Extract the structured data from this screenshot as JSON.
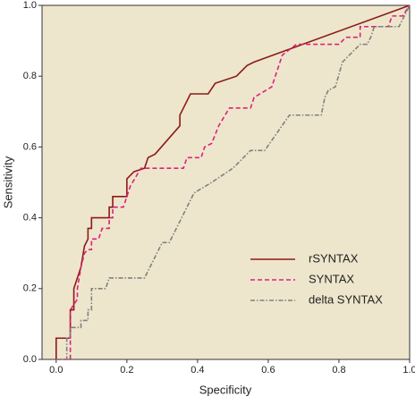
{
  "chart_data": {
    "type": "line",
    "x_label": "Specificity",
    "y_label": "Sensitivity",
    "xlim": [
      -0.04,
      1.0
    ],
    "ylim": [
      0,
      1
    ],
    "xticks": [
      {
        "value": 0,
        "label": "0.0"
      },
      {
        "value": 0.2,
        "label": "0.2"
      },
      {
        "value": 0.4,
        "label": "0.4"
      },
      {
        "value": 0.6,
        "label": "0.6"
      },
      {
        "value": 0.8,
        "label": "0.8"
      },
      {
        "value": 1,
        "label": "1.0"
      }
    ],
    "yticks": [
      {
        "value": 0,
        "label": "0.0"
      },
      {
        "value": 0.2,
        "label": "0.2"
      },
      {
        "value": 0.4,
        "label": "0.4"
      },
      {
        "value": 0.6,
        "label": "0.6"
      },
      {
        "value": 0.8,
        "label": "0.8"
      },
      {
        "value": 1,
        "label": "1.0"
      }
    ],
    "legend": "lower right",
    "background": "#ede6cc",
    "series": [
      {
        "name": "rSYNTAX",
        "color": "#8b1a1a",
        "dash": "solid",
        "x": [
          0,
          0,
          0.04,
          0.04,
          0.05,
          0.05,
          0.07,
          0.08,
          0.09,
          0.09,
          0.1,
          0.1,
          0.15,
          0.15,
          0.16,
          0.16,
          0.2,
          0.2,
          0.22,
          0.25,
          0.26,
          0.28,
          0.35,
          0.35,
          0.38,
          0.43,
          0.45,
          0.51,
          0.54,
          0.56,
          1
        ],
        "values": [
          0,
          0.06,
          0.06,
          0.14,
          0.14,
          0.2,
          0.26,
          0.32,
          0.34,
          0.37,
          0.37,
          0.4,
          0.4,
          0.43,
          0.43,
          0.46,
          0.46,
          0.51,
          0.53,
          0.54,
          0.57,
          0.58,
          0.66,
          0.69,
          0.75,
          0.75,
          0.78,
          0.8,
          0.83,
          0.84,
          1
        ]
      },
      {
        "name": "SYNTAX",
        "color": "#e0207a",
        "dash": "dashed",
        "x": [
          0,
          0.04,
          0.04,
          0.06,
          0.06,
          0.07,
          0.08,
          0.09,
          0.1,
          0.1,
          0.12,
          0.13,
          0.15,
          0.15,
          0.16,
          0.16,
          0.19,
          0.21,
          0.24,
          0.36,
          0.37,
          0.41,
          0.42,
          0.44,
          0.46,
          0.49,
          0.55,
          0.56,
          0.61,
          0.64,
          0.68,
          0.8,
          0.82,
          0.86,
          0.86,
          0.94,
          0.95,
          0.98,
          1
        ],
        "values": [
          0,
          0,
          0.14,
          0.17,
          0.2,
          0.26,
          0.3,
          0.31,
          0.31,
          0.34,
          0.34,
          0.37,
          0.37,
          0.4,
          0.4,
          0.43,
          0.43,
          0.49,
          0.54,
          0.54,
          0.57,
          0.57,
          0.6,
          0.61,
          0.66,
          0.71,
          0.71,
          0.74,
          0.77,
          0.86,
          0.89,
          0.89,
          0.91,
          0.91,
          0.94,
          0.94,
          0.97,
          0.97,
          1
        ]
      },
      {
        "name": "delta SYNTAX",
        "color": "#808080",
        "dash": "dashdot",
        "x": [
          0,
          0.03,
          0.03,
          0.04,
          0.04,
          0.07,
          0.07,
          0.09,
          0.09,
          0.1,
          0.1,
          0.14,
          0.15,
          0.25,
          0.3,
          0.32,
          0.39,
          0.44,
          0.47,
          0.5,
          0.55,
          0.59,
          0.66,
          0.75,
          0.76,
          0.77,
          0.79,
          0.81,
          0.84,
          0.86,
          0.88,
          0.89,
          0.9,
          0.97,
          1
        ],
        "values": [
          0,
          0,
          0.06,
          0.06,
          0.09,
          0.09,
          0.11,
          0.11,
          0.14,
          0.14,
          0.2,
          0.2,
          0.23,
          0.23,
          0.33,
          0.33,
          0.47,
          0.5,
          0.52,
          0.54,
          0.59,
          0.59,
          0.69,
          0.69,
          0.74,
          0.76,
          0.77,
          0.84,
          0.87,
          0.89,
          0.89,
          0.91,
          0.94,
          0.94,
          1
        ]
      }
    ]
  }
}
